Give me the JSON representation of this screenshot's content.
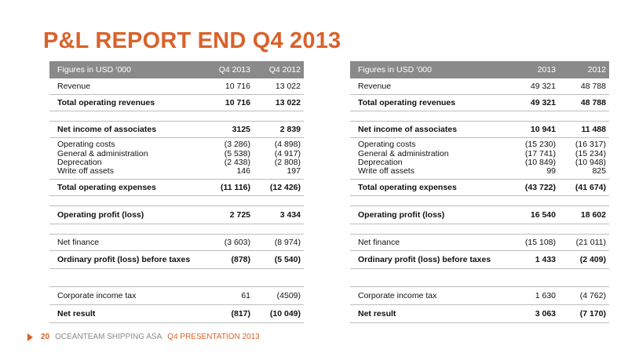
{
  "title": "P&L REPORT END Q4 2013",
  "left_table": {
    "header": {
      "label": "Figures in USD ‘000",
      "col1": "Q4 2013",
      "col2": "Q4 2012"
    },
    "revenue": {
      "label": "Revenue",
      "v1": "10 716",
      "v2": "13 022"
    },
    "total_operating_revenues": {
      "label": "Total operating revenues",
      "v1": "10 716",
      "v2": "13 022"
    },
    "net_income_of_associates": {
      "label": "Net income of associates",
      "v1": "3125",
      "v2": "2 839"
    },
    "expenses": [
      {
        "label": "Operating costs",
        "v1": "(3 286)",
        "v2": "(4 898)"
      },
      {
        "label": "General & administration",
        "v1": "(5 538)",
        "v2": "(4 917)"
      },
      {
        "label": "Deprecation",
        "v1": "(2 438)",
        "v2": "(2 808)"
      },
      {
        "label": "Write off assets",
        "v1": "146",
        "v2": "197"
      }
    ],
    "total_operating_expenses": {
      "label": "Total operating expenses",
      "v1": "(11 116)",
      "v2": "(12 426)"
    },
    "operating_profit": {
      "label": "Operating profit (loss)",
      "v1": "2 725",
      "v2": "3 434"
    },
    "net_finance": {
      "label": "Net finance",
      "v1": "(3 603)",
      "v2": "(8 974)"
    },
    "ordinary_profit": {
      "label": "Ordinary profit (loss) before taxes",
      "v1": "(878)",
      "v2": "(5 540)"
    },
    "corporate_income_tax": {
      "label": "Corporate income tax",
      "v1": "61",
      "v2": "(4509)"
    },
    "net_result": {
      "label": "Net result",
      "v1": "(817)",
      "v2": "(10 049)"
    }
  },
  "right_table": {
    "header": {
      "label": "Figures in USD ‘000",
      "col1": "2013",
      "col2": "2012"
    },
    "revenue": {
      "label": "Revenue",
      "v1": "49 321",
      "v2": "48 788"
    },
    "total_operating_revenues": {
      "label": "Total operating revenues",
      "v1": "49 321",
      "v2": "48 788"
    },
    "net_income_of_associates": {
      "label": "Net income of associates",
      "v1": "10 941",
      "v2": "11 488"
    },
    "expenses": [
      {
        "label": "Operating costs",
        "v1": "(15 230)",
        "v2": "(16 317)"
      },
      {
        "label": "General & administration",
        "v1": "(17 741)",
        "v2": "(15 234)"
      },
      {
        "label": "Deprecation",
        "v1": "(10 849)",
        "v2": "(10 948)"
      },
      {
        "label": "Write off assets",
        "v1": "99",
        "v2": "825"
      }
    ],
    "total_operating_expenses": {
      "label": "Total operating expenses",
      "v1": "(43 722)",
      "v2": "(41 674)"
    },
    "operating_profit": {
      "label": "Operating profit (loss)",
      "v1": "16 540",
      "v2": "18 602"
    },
    "net_finance": {
      "label": "Net finance",
      "v1": "(15 108)",
      "v2": "(21 011)"
    },
    "ordinary_profit": {
      "label": "Ordinary profit (loss) before taxes",
      "v1": "1 433",
      "v2": "(2 409)"
    },
    "corporate_income_tax": {
      "label": "Corporate income tax",
      "v1": "1 630",
      "v2": "(4 762)"
    },
    "net_result": {
      "label": "Net result",
      "v1": "3 063",
      "v2": "(7 170)"
    }
  },
  "footer": {
    "page_number": "20",
    "company": "OCEANTEAM SHIPPING ASA",
    "presentation": "Q4 PRESENTATION 2013"
  },
  "colors": {
    "accent": "#d9622b",
    "header_bg": "#8a8a8a",
    "rule": "#bdbdbd"
  },
  "icons": {
    "footer_marker": "triangle-right-icon"
  }
}
